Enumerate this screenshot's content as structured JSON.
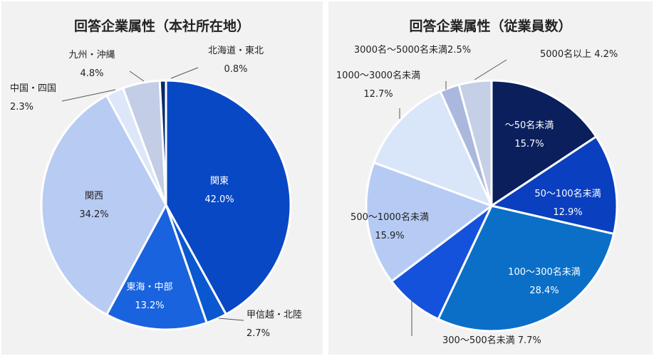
{
  "chart_data": [
    {
      "type": "pie",
      "title": "回答企業属性（本社所在地）",
      "slices": [
        {
          "label": "関東",
          "value": 42.0,
          "value_label": "42.0%",
          "color": "#0848c4",
          "text_color": "#ffffff"
        },
        {
          "label": "甲信越・北陸",
          "value": 2.7,
          "value_label": "2.7%",
          "color": "#0a58cf",
          "text_color": "#222222"
        },
        {
          "label": "東海・中部",
          "value": 13.2,
          "value_label": "13.2%",
          "color": "#1a63de",
          "text_color": "#ffffff"
        },
        {
          "label": "関西",
          "value": 34.2,
          "value_label": "34.2%",
          "color": "#b8cbf2",
          "text_color": "#222222"
        },
        {
          "label": "中国・四国",
          "value": 2.3,
          "value_label": "2.3%",
          "color": "#dde7f9",
          "text_color": "#222222"
        },
        {
          "label": "九州・沖縄",
          "value": 4.8,
          "value_label": "4.8%",
          "color": "#c3cde6",
          "text_color": "#222222"
        },
        {
          "label": "北海道・東北",
          "value": 0.8,
          "value_label": "0.8%",
          "color": "#062a6b",
          "text_color": "#222222"
        }
      ]
    },
    {
      "type": "pie",
      "title": "回答企業属性（従業員数）",
      "slices": [
        {
          "label": "～50名未満",
          "value": 15.7,
          "value_label": "15.7%",
          "color": "#0a1f5c",
          "text_color": "#ffffff"
        },
        {
          "label": "50～100名未満",
          "value": 12.9,
          "value_label": "12.9%",
          "color": "#0a3fbf",
          "text_color": "#ffffff"
        },
        {
          "label": "100～300名未満",
          "value": 28.4,
          "value_label": "28.4%",
          "color": "#0b6fc7",
          "text_color": "#ffffff"
        },
        {
          "label": "300～500名未満",
          "value": 7.7,
          "value_label": "7.7%",
          "color": "#1452dc",
          "text_color": "#222222"
        },
        {
          "label": "500～1000名未満",
          "value": 15.9,
          "value_label": "15.9%",
          "color": "#b6cbf4",
          "text_color": "#222222"
        },
        {
          "label": "1000～3000名未満",
          "value": 12.7,
          "value_label": "12.7%",
          "color": "#d9e5f9",
          "text_color": "#222222"
        },
        {
          "label": "3000名～5000名未満",
          "value": 2.5,
          "value_label": "2.5%",
          "color": "#aab8dd",
          "text_color": "#222222"
        },
        {
          "label": "5000名以上",
          "value": 4.2,
          "value_label": "4.2%",
          "color": "#c5cfe6",
          "text_color": "#222222"
        }
      ]
    }
  ]
}
